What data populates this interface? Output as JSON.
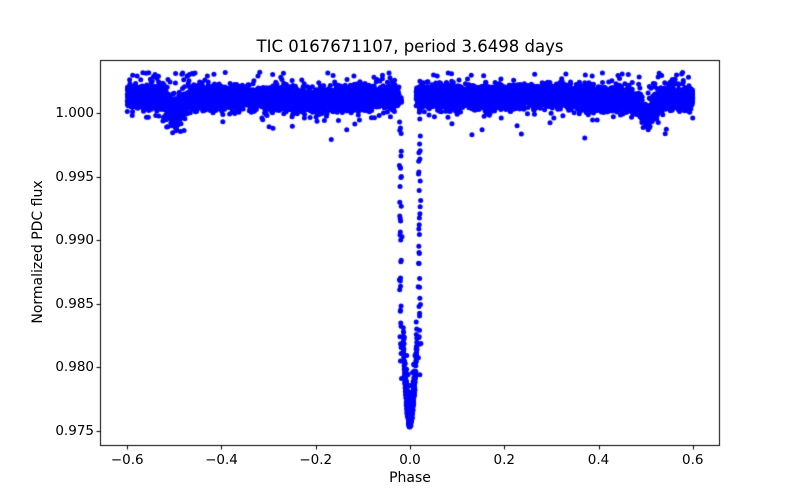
{
  "chart_data": {
    "type": "scatter",
    "title": "TIC 0167671107, period 3.6498 days",
    "xlabel": "Phase",
    "ylabel": "Normalized PDC flux",
    "marker_color": "#0000ff",
    "marker_radius_px": 2.5,
    "background_color": "#ffffff",
    "axis_color": "#000000",
    "grid": false,
    "legend": null,
    "xlim": [
      -0.6557,
      0.6557
    ],
    "ylim": [
      0.9739,
      1.00417
    ],
    "xticks": [
      -0.6,
      -0.4,
      -0.2,
      0.0,
      0.2,
      0.4,
      0.6
    ],
    "xtick_labels": [
      "−0.6",
      "−0.4",
      "−0.2",
      "0.0",
      "0.2",
      "0.4",
      "0.6"
    ],
    "yticks": [
      0.975,
      0.98,
      0.985,
      0.99,
      0.995,
      1.0
    ],
    "ytick_labels": [
      "0.975",
      "0.980",
      "0.985",
      "0.990",
      "0.995",
      "1.000"
    ],
    "model": {
      "description": "Phase-folded TESS light curve: flat baseline near flux 1.001 from phase -0.6 to 0.6, deep V-shaped primary transit at phase 0 reaching flux 0.9752, shallow secondary eclipses (~0.001 deep) near phases -0.497 and 0.503",
      "baseline": {
        "flux": 1.0012,
        "sigma": 0.00045,
        "phase_min": -0.6,
        "phase_max": 0.6,
        "n_points": 9000,
        "outlier_fraction": 0.04,
        "outlier_sigma": 0.0011,
        "max_flux": 1.0032
      },
      "primary_transit": {
        "center_phase": 0.0,
        "min_flux": 0.9752,
        "ingress_phase": -0.02,
        "egress_phase": 0.02,
        "strand_sigma": 0.0014,
        "strand_flux_low": 0.98,
        "n_strand_points": 42,
        "bottom_half_width": 0.0145,
        "bottom_edge_flux": 0.9812,
        "n_bottom_points": 280,
        "band_gap": [
          -0.023,
          0.013
        ]
      },
      "secondary_eclipses": [
        {
          "center_phase": -0.497,
          "depth": 0.0012,
          "half_width": 0.031
        },
        {
          "center_phase": 0.503,
          "depth": 0.0012,
          "half_width": 0.031
        }
      ]
    }
  }
}
